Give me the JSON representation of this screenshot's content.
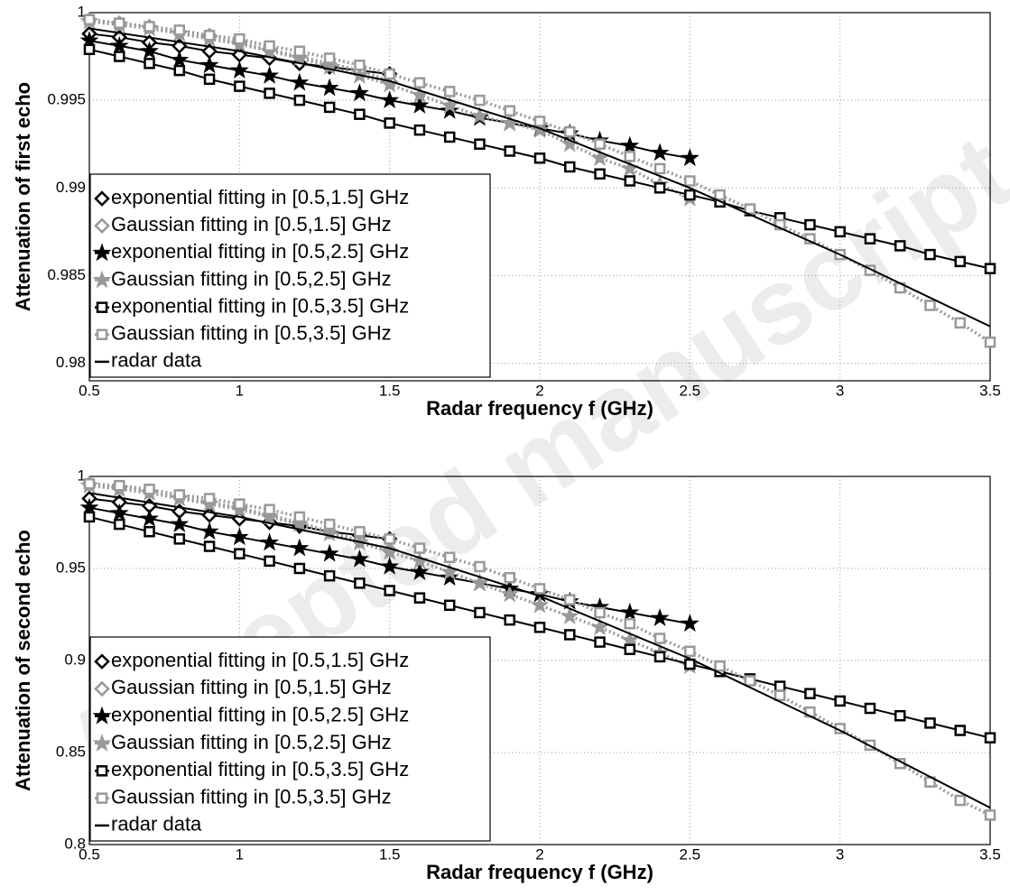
{
  "watermark": "Accepted manuscript",
  "chart_data": [
    {
      "type": "line",
      "xlabel": "Radar frequency f (GHz)",
      "ylabel": "Attenuation of first echo",
      "xlim": [
        0.5,
        3.5
      ],
      "xticks": [
        0.5,
        1,
        1.5,
        2,
        2.5,
        3,
        3.5
      ],
      "ylim": [
        0.979,
        1
      ],
      "yticks": [
        0.98,
        0.985,
        0.99,
        0.995,
        1
      ],
      "grid": true,
      "legend": "lower left",
      "series": [
        {
          "name": "exponential fitting in [0.5,1.5] GHz",
          "color": "#000000",
          "marker": "diamond",
          "dash": "solid",
          "x": [
            0.5,
            0.6,
            0.7,
            0.8,
            0.9,
            1.0,
            1.1,
            1.2,
            1.3,
            1.4,
            1.5
          ],
          "values": [
            0.9988,
            0.9986,
            0.9983,
            0.9981,
            0.9978,
            0.9976,
            0.9974,
            0.9971,
            0.9969,
            0.9967,
            0.9965
          ]
        },
        {
          "name": "Gaussian fitting in [0.5,1.5] GHz",
          "color": "#999999",
          "marker": "diamond",
          "dash": "dotted",
          "x": [
            0.5,
            0.6,
            0.7,
            0.8,
            0.9,
            1.0,
            1.1,
            1.2,
            1.3,
            1.4,
            1.5
          ],
          "values": [
            0.9996,
            0.9994,
            0.9992,
            0.9989,
            0.9987,
            0.9983,
            0.9979,
            0.9975,
            0.9971,
            0.9967,
            0.9961
          ]
        },
        {
          "name": "exponential fitting in [0.5,2.5] GHz",
          "color": "#000000",
          "marker": "star",
          "dash": "solid",
          "x": [
            0.5,
            0.6,
            0.7,
            0.8,
            0.9,
            1.0,
            1.1,
            1.2,
            1.3,
            1.4,
            1.5,
            1.6,
            1.7,
            1.8,
            1.9,
            2.0,
            2.1,
            2.2,
            2.3,
            2.4,
            2.5
          ],
          "values": [
            0.9984,
            0.9981,
            0.9978,
            0.9973,
            0.997,
            0.9967,
            0.9964,
            0.996,
            0.9957,
            0.9954,
            0.995,
            0.9947,
            0.9944,
            0.994,
            0.9937,
            0.9934,
            0.9931,
            0.9927,
            0.9924,
            0.992,
            0.9917
          ]
        },
        {
          "name": "Gaussian fitting in [0.5,2.5] GHz",
          "color": "#999999",
          "marker": "star",
          "dash": "dotted",
          "x": [
            0.5,
            0.6,
            0.7,
            0.8,
            0.9,
            1.0,
            1.1,
            1.2,
            1.3,
            1.4,
            1.5,
            1.6,
            1.7,
            1.8,
            1.9,
            2.0,
            2.1,
            2.2,
            2.3,
            2.4,
            2.5
          ],
          "values": [
            0.9995,
            0.9993,
            0.9991,
            0.9988,
            0.9985,
            0.9982,
            0.9978,
            0.9974,
            0.9969,
            0.9964,
            0.9959,
            0.9953,
            0.9947,
            0.9941,
            0.9937,
            0.9933,
            0.9925,
            0.9917,
            0.9911,
            0.9902,
            0.9894
          ]
        },
        {
          "name": "exponential fitting in [0.5,3.5] GHz",
          "color": "#000000",
          "marker": "square",
          "dash": "solid",
          "x": [
            0.5,
            0.6,
            0.7,
            0.8,
            0.9,
            1.0,
            1.1,
            1.2,
            1.3,
            1.4,
            1.5,
            1.6,
            1.7,
            1.8,
            1.9,
            2.0,
            2.1,
            2.2,
            2.3,
            2.4,
            2.5,
            2.6,
            2.7,
            2.8,
            2.9,
            3.0,
            3.1,
            3.2,
            3.3,
            3.4,
            3.5
          ],
          "values": [
            0.9979,
            0.9975,
            0.9971,
            0.9967,
            0.9962,
            0.9958,
            0.9954,
            0.995,
            0.9946,
            0.9942,
            0.9937,
            0.9933,
            0.9929,
            0.9925,
            0.9921,
            0.9917,
            0.9912,
            0.9908,
            0.9904,
            0.99,
            0.9896,
            0.9892,
            0.9887,
            0.9883,
            0.9879,
            0.9875,
            0.9871,
            0.9867,
            0.9862,
            0.9858,
            0.9854
          ]
        },
        {
          "name": "Gaussian fitting in [0.5,3.5] GHz",
          "color": "#999999",
          "marker": "square",
          "dash": "dotted",
          "x": [
            0.5,
            0.6,
            0.7,
            0.8,
            0.9,
            1.0,
            1.1,
            1.2,
            1.3,
            1.4,
            1.5,
            1.6,
            1.7,
            1.8,
            1.9,
            2.0,
            2.1,
            2.2,
            2.3,
            2.4,
            2.5,
            2.6,
            2.7,
            2.8,
            2.9,
            3.0,
            3.1,
            3.2,
            3.3,
            3.4,
            3.5
          ],
          "values": [
            0.9996,
            0.9994,
            0.9992,
            0.999,
            0.9987,
            0.9985,
            0.9981,
            0.9978,
            0.9974,
            0.997,
            0.9965,
            0.996,
            0.9955,
            0.995,
            0.9944,
            0.9938,
            0.9932,
            0.9925,
            0.9918,
            0.9911,
            0.9904,
            0.9896,
            0.9888,
            0.9879,
            0.9871,
            0.9862,
            0.9853,
            0.9843,
            0.9833,
            0.9823,
            0.9812
          ]
        },
        {
          "name": "radar data",
          "color": "#000000",
          "marker": "none",
          "dash": "solid",
          "x": [
            0.5,
            1.0,
            1.5,
            2.0,
            2.5,
            3.0,
            3.5
          ],
          "values": [
            0.9991,
            0.9978,
            0.9961,
            0.9934,
            0.99,
            0.9862,
            0.9821
          ]
        }
      ]
    },
    {
      "type": "line",
      "xlabel": "Radar frequency f (GHz)",
      "ylabel": "Attenuation of second echo",
      "xlim": [
        0.5,
        3.5
      ],
      "xticks": [
        0.5,
        1,
        1.5,
        2,
        2.5,
        3,
        3.5
      ],
      "ylim": [
        0.8,
        1
      ],
      "yticks": [
        0.8,
        0.85,
        0.9,
        0.95,
        1
      ],
      "grid": true,
      "legend": "lower left",
      "series": [
        {
          "name": "exponential fitting in [0.5,1.5] GHz",
          "color": "#000000",
          "marker": "diamond",
          "dash": "solid",
          "x": [
            0.5,
            0.6,
            0.7,
            0.8,
            0.9,
            1.0,
            1.1,
            1.2,
            1.3,
            1.4,
            1.5
          ],
          "values": [
            0.988,
            0.986,
            0.984,
            0.981,
            0.979,
            0.977,
            0.975,
            0.973,
            0.97,
            0.968,
            0.966
          ]
        },
        {
          "name": "Gaussian fitting in [0.5,1.5] GHz",
          "color": "#999999",
          "marker": "diamond",
          "dash": "dotted",
          "x": [
            0.5,
            0.6,
            0.7,
            0.8,
            0.9,
            1.0,
            1.1,
            1.2,
            1.3,
            1.4,
            1.5
          ],
          "values": [
            0.996,
            0.994,
            0.992,
            0.989,
            0.986,
            0.983,
            0.979,
            0.975,
            0.97,
            0.965,
            0.96
          ]
        },
        {
          "name": "exponential fitting in [0.5,2.5] GHz",
          "color": "#000000",
          "marker": "star",
          "dash": "solid",
          "x": [
            0.5,
            0.6,
            0.7,
            0.8,
            0.9,
            1.0,
            1.1,
            1.2,
            1.3,
            1.4,
            1.5,
            1.6,
            1.7,
            1.8,
            1.9,
            2.0,
            2.1,
            2.2,
            2.3,
            2.4,
            2.5
          ],
          "values": [
            0.983,
            0.98,
            0.977,
            0.974,
            0.97,
            0.967,
            0.964,
            0.961,
            0.958,
            0.955,
            0.951,
            0.948,
            0.945,
            0.942,
            0.939,
            0.936,
            0.932,
            0.929,
            0.926,
            0.923,
            0.92
          ]
        },
        {
          "name": "Gaussian fitting in [0.5,2.5] GHz",
          "color": "#999999",
          "marker": "star",
          "dash": "dotted",
          "x": [
            0.5,
            0.6,
            0.7,
            0.8,
            0.9,
            1.0,
            1.1,
            1.2,
            1.3,
            1.4,
            1.5,
            1.6,
            1.7,
            1.8,
            1.9,
            2.0,
            2.1,
            2.2,
            2.3,
            2.4,
            2.5
          ],
          "values": [
            0.995,
            0.993,
            0.991,
            0.988,
            0.985,
            0.982,
            0.978,
            0.974,
            0.969,
            0.964,
            0.959,
            0.954,
            0.948,
            0.942,
            0.936,
            0.93,
            0.924,
            0.918,
            0.911,
            0.904,
            0.897
          ]
        },
        {
          "name": "exponential fitting in [0.5,3.5] GHz",
          "color": "#000000",
          "marker": "square",
          "dash": "solid",
          "x": [
            0.5,
            0.6,
            0.7,
            0.8,
            0.9,
            1.0,
            1.1,
            1.2,
            1.3,
            1.4,
            1.5,
            1.6,
            1.7,
            1.8,
            1.9,
            2.0,
            2.1,
            2.2,
            2.3,
            2.4,
            2.5,
            2.6,
            2.7,
            2.8,
            2.9,
            3.0,
            3.1,
            3.2,
            3.3,
            3.4,
            3.5
          ],
          "values": [
            0.978,
            0.974,
            0.97,
            0.966,
            0.962,
            0.958,
            0.954,
            0.95,
            0.946,
            0.942,
            0.938,
            0.934,
            0.93,
            0.926,
            0.922,
            0.918,
            0.914,
            0.91,
            0.906,
            0.902,
            0.898,
            0.894,
            0.89,
            0.886,
            0.882,
            0.878,
            0.874,
            0.87,
            0.866,
            0.862,
            0.858
          ]
        },
        {
          "name": "Gaussian fitting in [0.5,3.5] GHz",
          "color": "#999999",
          "marker": "square",
          "dash": "dotted",
          "x": [
            0.5,
            0.6,
            0.7,
            0.8,
            0.9,
            1.0,
            1.1,
            1.2,
            1.3,
            1.4,
            1.5,
            1.6,
            1.7,
            1.8,
            1.9,
            2.0,
            2.1,
            2.2,
            2.3,
            2.4,
            2.5,
            2.6,
            2.7,
            2.8,
            2.9,
            3.0,
            3.1,
            3.2,
            3.3,
            3.4,
            3.5
          ],
          "values": [
            0.996,
            0.995,
            0.993,
            0.99,
            0.988,
            0.985,
            0.982,
            0.978,
            0.974,
            0.97,
            0.966,
            0.961,
            0.956,
            0.951,
            0.945,
            0.939,
            0.933,
            0.926,
            0.92,
            0.912,
            0.905,
            0.897,
            0.889,
            0.881,
            0.872,
            0.863,
            0.854,
            0.844,
            0.834,
            0.824,
            0.816
          ]
        },
        {
          "name": "radar data",
          "color": "#000000",
          "marker": "none",
          "dash": "solid",
          "x": [
            0.5,
            1.0,
            1.5,
            2.0,
            2.5,
            3.0,
            3.5
          ],
          "values": [
            0.991,
            0.978,
            0.961,
            0.935,
            0.901,
            0.862,
            0.82
          ]
        }
      ]
    }
  ]
}
